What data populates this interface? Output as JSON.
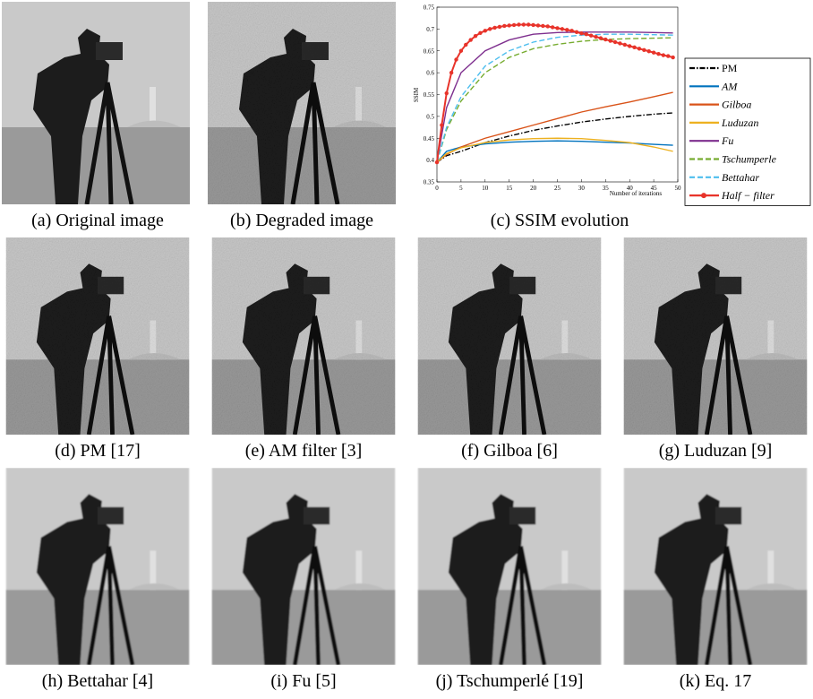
{
  "captions": [
    "(a) Original image",
    "(b) Degraded image",
    "(c) SSIM evolution",
    "(d) PM [17]",
    "(e) AM filter [3]",
    "(f) Gilboa [6]",
    "(g) Luduzan [9]",
    "(h) Bettahar [4]",
    "(i) Fu [5]",
    "(j) Tschumperlé [19]",
    "(k) Eq. 17"
  ],
  "chart_data": {
    "type": "line",
    "xlabel": "Number of iterations",
    "ylabel": "SSIM",
    "xlim": [
      0,
      50
    ],
    "xticks": [
      0,
      5,
      10,
      15,
      20,
      25,
      30,
      35,
      40,
      45,
      50
    ],
    "ylim": [
      0.35,
      0.75
    ],
    "yticks": [
      0.35,
      0.4,
      0.45,
      0.5,
      0.55,
      0.6,
      0.65,
      0.7,
      0.75
    ],
    "series": [
      {
        "name": "PM",
        "color": "#000000",
        "style": "dashdot",
        "x": [
          0,
          2,
          5,
          10,
          15,
          20,
          25,
          30,
          35,
          40,
          45,
          49
        ],
        "values": [
          0.395,
          0.41,
          0.42,
          0.44,
          0.455,
          0.468,
          0.478,
          0.487,
          0.494,
          0.5,
          0.505,
          0.508
        ]
      },
      {
        "name": "AM",
        "color": "#0072bd",
        "style": "solid",
        "x": [
          0,
          2,
          5,
          10,
          15,
          20,
          25,
          30,
          35,
          40,
          45,
          49
        ],
        "values": [
          0.395,
          0.42,
          0.43,
          0.437,
          0.441,
          0.443,
          0.444,
          0.443,
          0.441,
          0.439,
          0.436,
          0.434
        ]
      },
      {
        "name": "Gilboa",
        "color": "#d95319",
        "style": "solid",
        "x": [
          0,
          2,
          5,
          10,
          15,
          20,
          25,
          30,
          35,
          40,
          45,
          49
        ],
        "values": [
          0.395,
          0.413,
          0.43,
          0.45,
          0.465,
          0.48,
          0.495,
          0.51,
          0.522,
          0.533,
          0.545,
          0.555
        ]
      },
      {
        "name": "Luduzan",
        "color": "#edb120",
        "style": "solid",
        "x": [
          0,
          2,
          5,
          10,
          15,
          20,
          25,
          30,
          35,
          40,
          45,
          49
        ],
        "values": [
          0.395,
          0.415,
          0.428,
          0.44,
          0.446,
          0.449,
          0.45,
          0.449,
          0.445,
          0.44,
          0.43,
          0.42
        ]
      },
      {
        "name": "Fu",
        "color": "#7e2f8e",
        "style": "solid",
        "x": [
          0,
          2,
          5,
          10,
          15,
          20,
          25,
          30,
          35,
          40,
          45,
          49
        ],
        "values": [
          0.395,
          0.52,
          0.6,
          0.65,
          0.675,
          0.688,
          0.692,
          0.693,
          0.693,
          0.693,
          0.692,
          0.691
        ]
      },
      {
        "name": "Tschumperle",
        "color": "#77ac30",
        "style": "dashed",
        "x": [
          0,
          2,
          5,
          10,
          15,
          20,
          25,
          30,
          35,
          40,
          45,
          49
        ],
        "values": [
          0.395,
          0.47,
          0.535,
          0.6,
          0.635,
          0.655,
          0.665,
          0.672,
          0.676,
          0.678,
          0.679,
          0.68
        ]
      },
      {
        "name": "Bettahar",
        "color": "#4dbeee",
        "style": "dashed",
        "x": [
          0,
          2,
          5,
          10,
          15,
          20,
          25,
          30,
          35,
          40,
          45,
          49
        ],
        "values": [
          0.395,
          0.475,
          0.545,
          0.615,
          0.65,
          0.67,
          0.681,
          0.686,
          0.688,
          0.688,
          0.687,
          0.686
        ]
      },
      {
        "name": "Half − filter",
        "color": "#e8332a",
        "style": "solid",
        "marker": true,
        "x": [
          0,
          1,
          2,
          3,
          4,
          5,
          6,
          7,
          8,
          9,
          10,
          11,
          12,
          13,
          14,
          15,
          16,
          17,
          18,
          19,
          20,
          21,
          22,
          23,
          24,
          25,
          26,
          27,
          28,
          29,
          30,
          31,
          32,
          33,
          34,
          35,
          36,
          37,
          38,
          39,
          40,
          41,
          42,
          43,
          44,
          45,
          46,
          47,
          48,
          49
        ],
        "values": [
          0.395,
          0.48,
          0.553,
          0.6,
          0.63,
          0.65,
          0.664,
          0.675,
          0.684,
          0.691,
          0.696,
          0.7,
          0.703,
          0.705,
          0.707,
          0.708,
          0.709,
          0.71,
          0.71,
          0.71,
          0.709,
          0.708,
          0.707,
          0.706,
          0.704,
          0.702,
          0.7,
          0.698,
          0.696,
          0.693,
          0.69,
          0.688,
          0.685,
          0.682,
          0.679,
          0.676,
          0.673,
          0.67,
          0.667,
          0.664,
          0.661,
          0.658,
          0.655,
          0.652,
          0.649,
          0.646,
          0.643,
          0.64,
          0.638,
          0.635
        ]
      }
    ]
  }
}
